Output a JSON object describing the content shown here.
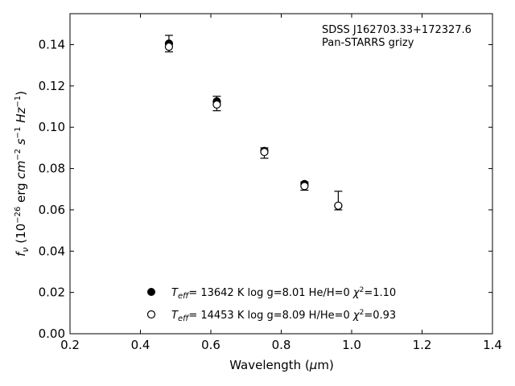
{
  "chart_data": {
    "type": "scatter",
    "xlim": [
      0.2,
      1.4
    ],
    "ylim": [
      0.0,
      0.155
    ],
    "xticks": [
      "0.2",
      "0.4",
      "0.6",
      "0.8",
      "1.0",
      "1.2",
      "1.4"
    ],
    "yticks": [
      "0.00",
      "0.02",
      "0.04",
      "0.06",
      "0.08",
      "0.10",
      "0.12",
      "0.14"
    ],
    "xlabel_main": "Wavelength (",
    "xlabel_mu": "μ",
    "xlabel_tail": "m)",
    "ylabel": "f_ν (10^-26 erg cm^-2 s^-1 Hz^-1)",
    "annotation_line1": "SDSS J162703.33+172327.6",
    "annotation_line2": "Pan-STARRS grizy",
    "observed": {
      "x": [
        0.481,
        0.617,
        0.752,
        0.866,
        0.962
      ],
      "y": [
        0.1405,
        0.1115,
        0.0875,
        0.0715,
        0.0645
      ],
      "err": [
        0.004,
        0.0035,
        0.0025,
        0.002,
        0.0045
      ]
    },
    "series": [
      {
        "marker": "filled",
        "label": "T_eff= 13642 K  log g=8.01  He/H=0  χ^2=1.10",
        "x": [
          0.481,
          0.617,
          0.752,
          0.866,
          0.962
        ],
        "y": [
          0.1405,
          0.1125,
          0.0885,
          0.0725,
          0.062
        ]
      },
      {
        "marker": "open",
        "label": "T_eff= 14453 K  log g=8.09  H/He=0  χ^2=0.93",
        "x": [
          0.481,
          0.617,
          0.752,
          0.866,
          0.962
        ],
        "y": [
          0.139,
          0.111,
          0.088,
          0.0715,
          0.062
        ]
      }
    ],
    "legend_placement": "bottom-center",
    "grid": false
  }
}
